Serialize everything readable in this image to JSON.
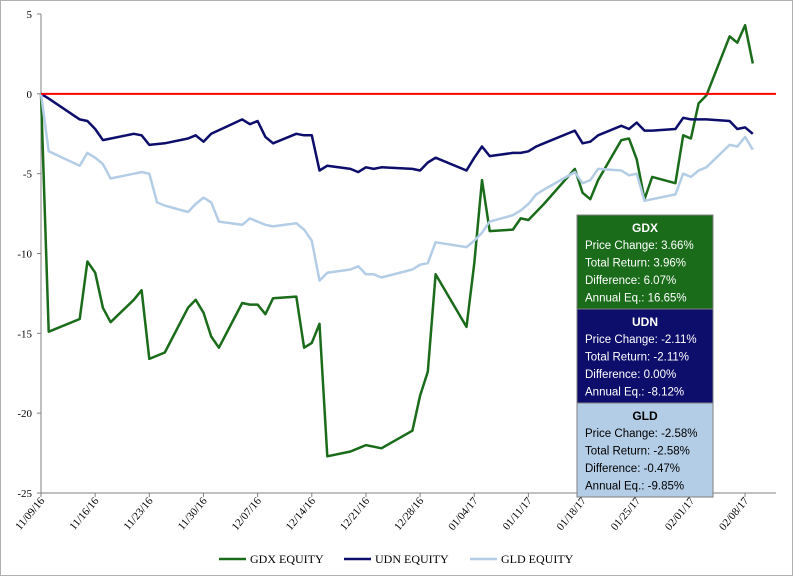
{
  "chart_data": {
    "type": "line",
    "title": "",
    "xlabel": "",
    "ylabel": "",
    "ylim": [
      -25,
      5
    ],
    "yticks": [
      5,
      0,
      -5,
      -10,
      -15,
      -20,
      -25
    ],
    "xtick_labels": [
      "11/09/16",
      "11/16/16",
      "11/23/16",
      "11/30/16",
      "12/07/16",
      "12/14/16",
      "12/21/16",
      "12/28/16",
      "01/04/17",
      "01/11/17",
      "01/18/17",
      "01/25/17",
      "02/01/17",
      "02/08/17"
    ],
    "x_start": "2016-11-09",
    "x_end": "2017-02-12",
    "grid": false,
    "legend": "bottom",
    "zero_line": {
      "value": 0,
      "color": "#ff0000"
    },
    "series": [
      {
        "name": "GDX EQUITY",
        "color": "#1a6b1a",
        "points": [
          [
            "2016-11-09",
            0
          ],
          [
            "2016-11-10",
            -14.9
          ],
          [
            "2016-11-14",
            -14.1
          ],
          [
            "2016-11-15",
            -10.5
          ],
          [
            "2016-11-16",
            -11.2
          ],
          [
            "2016-11-17",
            -13.4
          ],
          [
            "2016-11-18",
            -14.3
          ],
          [
            "2016-11-21",
            -12.9
          ],
          [
            "2016-11-22",
            -12.3
          ],
          [
            "2016-11-23",
            -16.6
          ],
          [
            "2016-11-25",
            -16.2
          ],
          [
            "2016-11-28",
            -13.4
          ],
          [
            "2016-11-29",
            -12.9
          ],
          [
            "2016-11-30",
            -13.7
          ],
          [
            "2016-12-01",
            -15.2
          ],
          [
            "2016-12-02",
            -15.9
          ],
          [
            "2016-12-05",
            -13.1
          ],
          [
            "2016-12-06",
            -13.2
          ],
          [
            "2016-12-07",
            -13.2
          ],
          [
            "2016-12-08",
            -13.8
          ],
          [
            "2016-12-09",
            -12.8
          ],
          [
            "2016-12-12",
            -12.7
          ],
          [
            "2016-12-13",
            -15.9
          ],
          [
            "2016-12-14",
            -15.6
          ],
          [
            "2016-12-15",
            -14.4
          ],
          [
            "2016-12-16",
            -22.7
          ],
          [
            "2016-12-19",
            -22.4
          ],
          [
            "2016-12-20",
            -22.2
          ],
          [
            "2016-12-21",
            -22.0
          ],
          [
            "2016-12-22",
            -22.1
          ],
          [
            "2016-12-23",
            -22.2
          ],
          [
            "2016-12-27",
            -21.1
          ],
          [
            "2016-12-28",
            -18.9
          ],
          [
            "2016-12-29",
            -17.4
          ],
          [
            "2016-12-30",
            -11.3
          ],
          [
            "2017-01-03",
            -14.6
          ],
          [
            "2017-01-04",
            -10.6
          ],
          [
            "2017-01-05",
            -5.4
          ],
          [
            "2017-01-06",
            -8.6
          ],
          [
            "2017-01-09",
            -8.5
          ],
          [
            "2017-01-10",
            -7.8
          ],
          [
            "2017-01-11",
            -7.9
          ],
          [
            "2017-01-12",
            -7.4
          ],
          [
            "2017-01-13",
            -6.9
          ],
          [
            "2017-01-17",
            -4.7
          ],
          [
            "2017-01-18",
            -6.2
          ],
          [
            "2017-01-19",
            -6.6
          ],
          [
            "2017-01-20",
            -5.4
          ],
          [
            "2017-01-23",
            -2.9
          ],
          [
            "2017-01-24",
            -2.8
          ],
          [
            "2017-01-25",
            -4.1
          ],
          [
            "2017-01-26",
            -6.6
          ],
          [
            "2017-01-27",
            -5.2
          ],
          [
            "2017-01-30",
            -5.6
          ],
          [
            "2017-01-31",
            -2.6
          ],
          [
            "2017-02-01",
            -2.8
          ],
          [
            "2017-02-02",
            -0.6
          ],
          [
            "2017-02-03",
            -0.1
          ],
          [
            "2017-02-06",
            3.6
          ],
          [
            "2017-02-07",
            3.2
          ],
          [
            "2017-02-08",
            4.3
          ],
          [
            "2017-02-09",
            1.9
          ]
        ]
      },
      {
        "name": "UDN EQUITY",
        "color": "#0d0d6b",
        "points": [
          [
            "2016-11-09",
            0
          ],
          [
            "2016-11-10",
            -0.3
          ],
          [
            "2016-11-14",
            -1.6
          ],
          [
            "2016-11-15",
            -1.7
          ],
          [
            "2016-11-16",
            -2.2
          ],
          [
            "2016-11-17",
            -2.9
          ],
          [
            "2016-11-21",
            -2.5
          ],
          [
            "2016-11-22",
            -2.6
          ],
          [
            "2016-11-23",
            -3.2
          ],
          [
            "2016-11-25",
            -3.1
          ],
          [
            "2016-11-28",
            -2.8
          ],
          [
            "2016-11-29",
            -2.6
          ],
          [
            "2016-11-30",
            -3.0
          ],
          [
            "2016-12-01",
            -2.5
          ],
          [
            "2016-12-05",
            -1.6
          ],
          [
            "2016-12-06",
            -1.9
          ],
          [
            "2016-12-07",
            -1.7
          ],
          [
            "2016-12-08",
            -2.7
          ],
          [
            "2016-12-09",
            -3.1
          ],
          [
            "2016-12-12",
            -2.5
          ],
          [
            "2016-12-13",
            -2.6
          ],
          [
            "2016-12-14",
            -2.6
          ],
          [
            "2016-12-15",
            -4.8
          ],
          [
            "2016-12-16",
            -4.5
          ],
          [
            "2016-12-19",
            -4.7
          ],
          [
            "2016-12-20",
            -4.9
          ],
          [
            "2016-12-21",
            -4.6
          ],
          [
            "2016-12-22",
            -4.7
          ],
          [
            "2016-12-23",
            -4.6
          ],
          [
            "2016-12-27",
            -4.7
          ],
          [
            "2016-12-28",
            -4.8
          ],
          [
            "2016-12-29",
            -4.3
          ],
          [
            "2016-12-30",
            -4.0
          ],
          [
            "2017-01-03",
            -4.8
          ],
          [
            "2017-01-04",
            -4.0
          ],
          [
            "2017-01-05",
            -3.3
          ],
          [
            "2017-01-06",
            -3.9
          ],
          [
            "2017-01-09",
            -3.7
          ],
          [
            "2017-01-10",
            -3.7
          ],
          [
            "2017-01-11",
            -3.6
          ],
          [
            "2017-01-12",
            -3.3
          ],
          [
            "2017-01-13",
            -3.1
          ],
          [
            "2017-01-17",
            -2.3
          ],
          [
            "2017-01-18",
            -3.1
          ],
          [
            "2017-01-19",
            -3.0
          ],
          [
            "2017-01-20",
            -2.6
          ],
          [
            "2017-01-23",
            -2.0
          ],
          [
            "2017-01-24",
            -2.2
          ],
          [
            "2017-01-25",
            -1.8
          ],
          [
            "2017-01-26",
            -2.3
          ],
          [
            "2017-01-27",
            -2.3
          ],
          [
            "2017-01-30",
            -2.2
          ],
          [
            "2017-01-31",
            -1.5
          ],
          [
            "2017-02-01",
            -1.6
          ],
          [
            "2017-02-02",
            -1.6
          ],
          [
            "2017-02-03",
            -1.6
          ],
          [
            "2017-02-06",
            -1.7
          ],
          [
            "2017-02-07",
            -2.2
          ],
          [
            "2017-02-08",
            -2.1
          ],
          [
            "2017-02-09",
            -2.5
          ]
        ]
      },
      {
        "name": "GLD EQUITY",
        "color": "#b4cde6",
        "points": [
          [
            "2016-11-09",
            0
          ],
          [
            "2016-11-10",
            -3.6
          ],
          [
            "2016-11-14",
            -4.5
          ],
          [
            "2016-11-15",
            -3.7
          ],
          [
            "2016-11-16",
            -4.0
          ],
          [
            "2016-11-17",
            -4.4
          ],
          [
            "2016-11-18",
            -5.3
          ],
          [
            "2016-11-21",
            -5.0
          ],
          [
            "2016-11-22",
            -4.9
          ],
          [
            "2016-11-23",
            -5.0
          ],
          [
            "2016-11-24",
            -6.8
          ],
          [
            "2016-11-25",
            -7.0
          ],
          [
            "2016-11-28",
            -7.4
          ],
          [
            "2016-11-29",
            -6.9
          ],
          [
            "2016-11-30",
            -6.5
          ],
          [
            "2016-12-01",
            -6.8
          ],
          [
            "2016-12-02",
            -8.0
          ],
          [
            "2016-12-05",
            -8.2
          ],
          [
            "2016-12-06",
            -7.8
          ],
          [
            "2016-12-07",
            -8.0
          ],
          [
            "2016-12-08",
            -8.2
          ],
          [
            "2016-12-09",
            -8.3
          ],
          [
            "2016-12-12",
            -8.1
          ],
          [
            "2016-12-13",
            -8.5
          ],
          [
            "2016-12-14",
            -9.2
          ],
          [
            "2016-12-15",
            -11.7
          ],
          [
            "2016-12-16",
            -11.2
          ],
          [
            "2016-12-19",
            -11.0
          ],
          [
            "2016-12-20",
            -10.8
          ],
          [
            "2016-12-21",
            -11.3
          ],
          [
            "2016-12-22",
            -11.3
          ],
          [
            "2016-12-23",
            -11.5
          ],
          [
            "2016-12-27",
            -11.0
          ],
          [
            "2016-12-28",
            -10.7
          ],
          [
            "2016-12-29",
            -10.6
          ],
          [
            "2016-12-30",
            -9.3
          ],
          [
            "2017-01-03",
            -9.6
          ],
          [
            "2017-01-04",
            -9.2
          ],
          [
            "2017-01-05",
            -8.7
          ],
          [
            "2017-01-06",
            -8.0
          ],
          [
            "2017-01-09",
            -7.6
          ],
          [
            "2017-01-10",
            -7.3
          ],
          [
            "2017-01-11",
            -6.9
          ],
          [
            "2017-01-12",
            -6.3
          ],
          [
            "2017-01-13",
            -6.0
          ],
          [
            "2017-01-17",
            -4.9
          ],
          [
            "2017-01-18",
            -5.6
          ],
          [
            "2017-01-19",
            -5.4
          ],
          [
            "2017-01-20",
            -4.7
          ],
          [
            "2017-01-23",
            -4.8
          ],
          [
            "2017-01-24",
            -5.1
          ],
          [
            "2017-01-25",
            -5.0
          ],
          [
            "2017-01-26",
            -6.7
          ],
          [
            "2017-01-27",
            -6.6
          ],
          [
            "2017-01-30",
            -6.3
          ],
          [
            "2017-01-31",
            -5.0
          ],
          [
            "2017-02-01",
            -5.2
          ],
          [
            "2017-02-02",
            -4.8
          ],
          [
            "2017-02-03",
            -4.6
          ],
          [
            "2017-02-06",
            -3.2
          ],
          [
            "2017-02-07",
            -3.3
          ],
          [
            "2017-02-08",
            -2.7
          ],
          [
            "2017-02-09",
            -3.5
          ]
        ]
      }
    ]
  },
  "stat_boxes": [
    {
      "ticker": "GDX",
      "bg": "#1a6b1a",
      "text_color": "#ffffff",
      "lines": [
        "Price Change: 3.66%",
        "Total Return: 3.96%",
        "Difference: 6.07%",
        "Annual Eq.: 16.65%"
      ]
    },
    {
      "ticker": "UDN",
      "bg": "#0d0d6b",
      "text_color": "#ffffff",
      "lines": [
        "Price Change: -2.11%",
        "Total Return: -2.11%",
        "Difference: 0.00%",
        "Annual Eq.: -8.12%"
      ]
    },
    {
      "ticker": "GLD",
      "bg": "#b4cde6",
      "text_color": "#000000",
      "lines": [
        "Price Change: -2.58%",
        "Total Return: -2.58%",
        "Difference: -0.47%",
        "Annual Eq.: -9.85%"
      ]
    }
  ]
}
